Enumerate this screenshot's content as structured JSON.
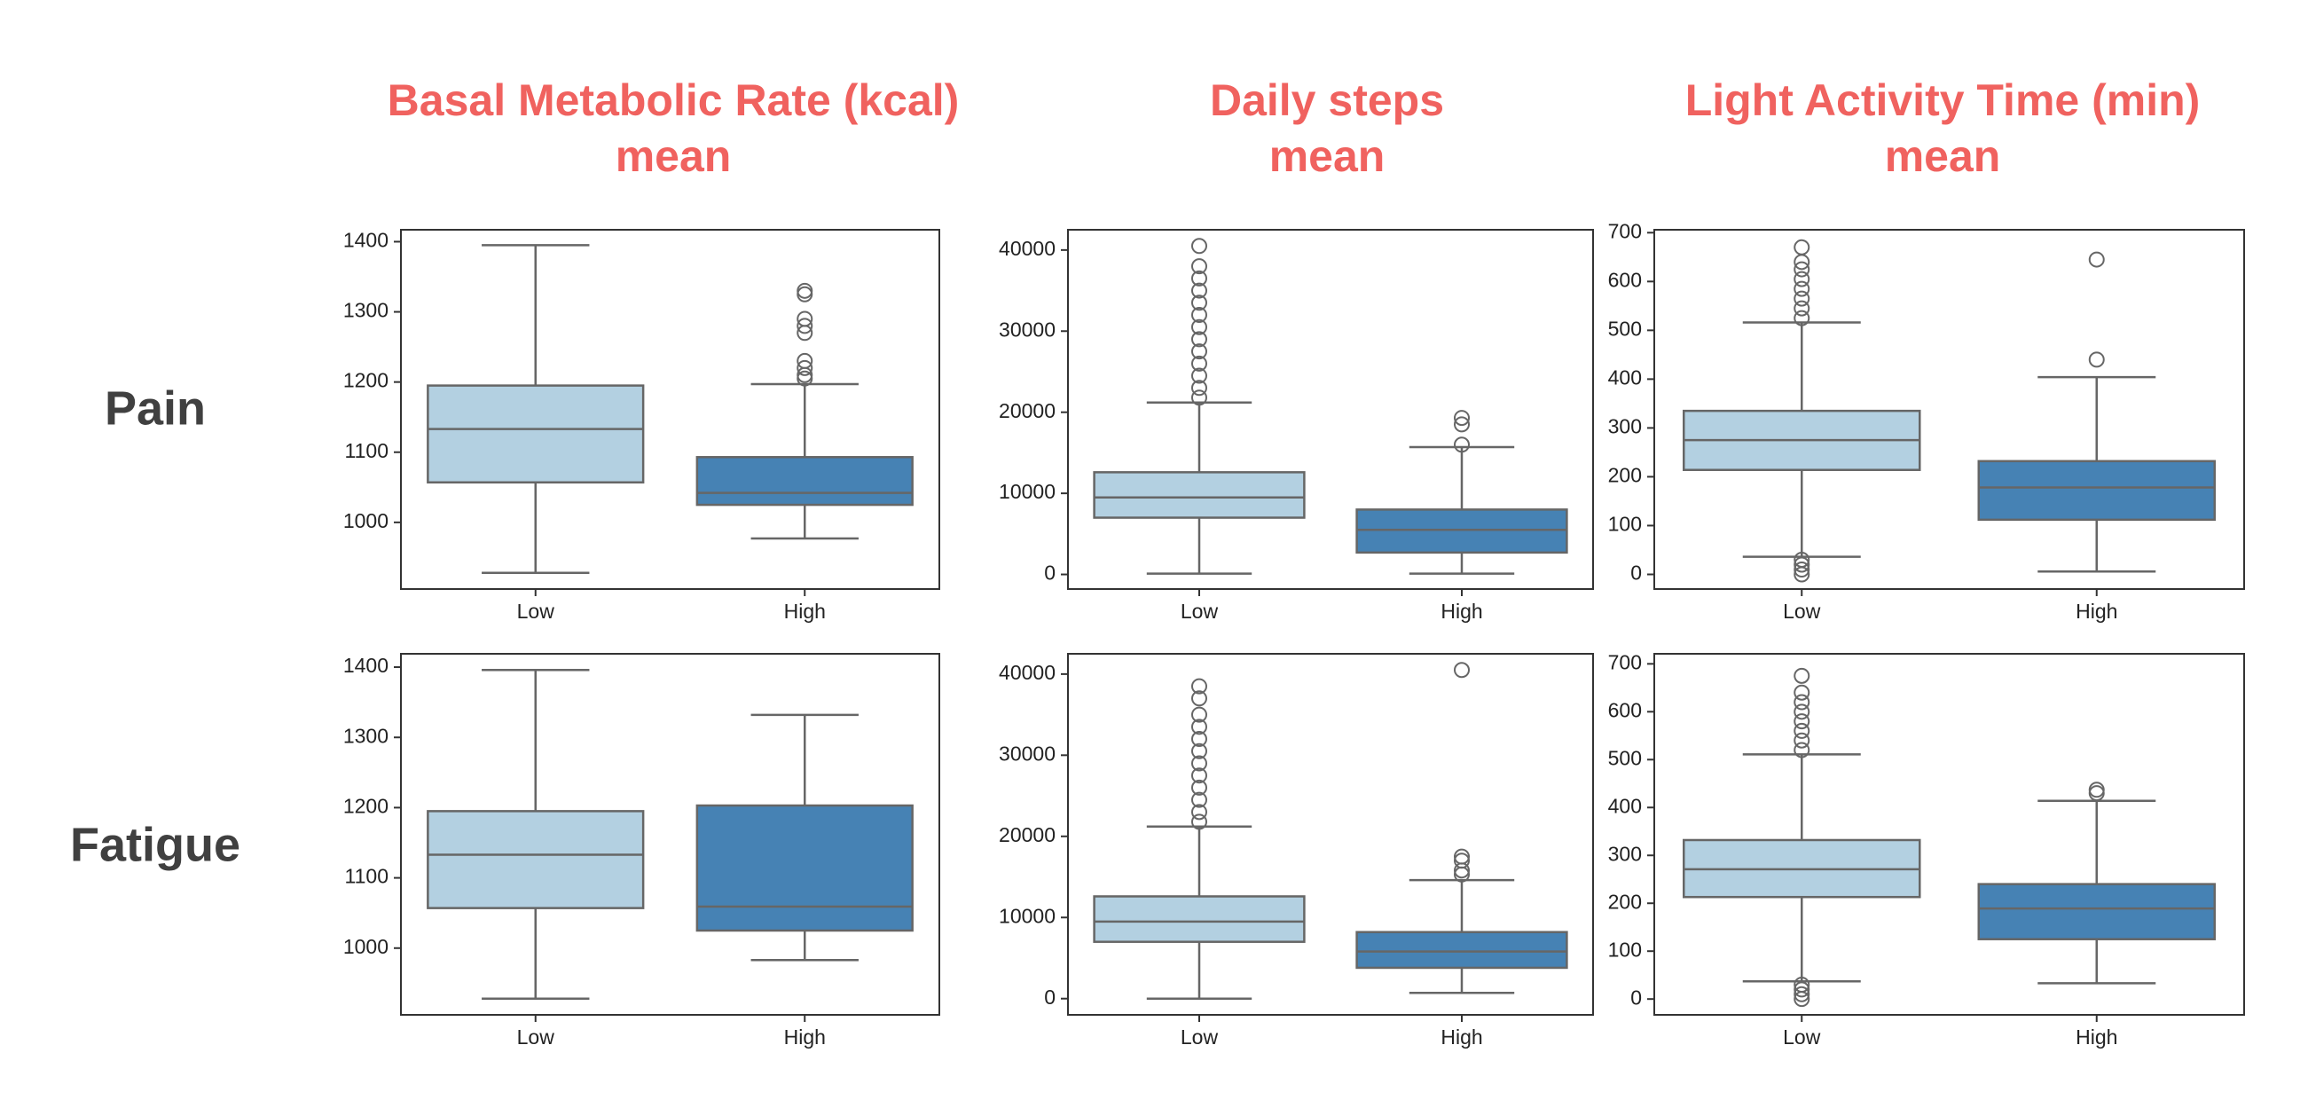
{
  "column_titles": [
    [
      "Basal Metabolic Rate (kcal)",
      "mean"
    ],
    [
      "Daily steps",
      "mean"
    ],
    [
      "Light Activity Time (min)",
      "mean"
    ]
  ],
  "row_labels": [
    "Pain",
    "Fatigue"
  ],
  "chart_data": [
    {
      "type": "box",
      "categories": [
        "Low",
        "High"
      ],
      "colors": [
        "#b3d0e1",
        "#4682b4"
      ],
      "ylim": [
        905,
        1417
      ],
      "yticks": [
        1000,
        1100,
        1200,
        1300,
        1400
      ],
      "boxes": [
        {
          "whislo": 928,
          "q1": 1057,
          "med": 1133,
          "q3": 1195,
          "whishi": 1395,
          "fliers": []
        },
        {
          "whislo": 977,
          "q1": 1025,
          "med": 1042,
          "q3": 1093,
          "whishi": 1197,
          "fliers": [
            1205,
            1210,
            1220,
            1230,
            1270,
            1280,
            1290,
            1325,
            1330
          ]
        }
      ]
    },
    {
      "type": "box",
      "categories": [
        "Low",
        "High"
      ],
      "colors": [
        "#b3d0e1",
        "#4682b4"
      ],
      "ylim": [
        -1800,
        42500
      ],
      "yticks": [
        0,
        10000,
        20000,
        30000,
        40000
      ],
      "boxes": [
        {
          "whislo": 100,
          "q1": 7000,
          "med": 9500,
          "q3": 12600,
          "whishi": 21200,
          "fliers": [
            21800,
            23000,
            24500,
            26000,
            27500,
            29000,
            30500,
            32000,
            33500,
            35000,
            36500,
            38000,
            40500
          ]
        },
        {
          "whislo": 100,
          "q1": 2700,
          "med": 5500,
          "q3": 8000,
          "whishi": 15700,
          "fliers": [
            16000,
            18500,
            19300
          ]
        }
      ]
    },
    {
      "type": "box",
      "categories": [
        "Low",
        "High"
      ],
      "colors": [
        "#b3d0e1",
        "#4682b4"
      ],
      "ylim": [
        -30,
        706
      ],
      "yticks": [
        0,
        100,
        200,
        300,
        400,
        500,
        600,
        700
      ],
      "boxes": [
        {
          "whislo": 36,
          "q1": 214,
          "med": 275,
          "q3": 335,
          "whishi": 516,
          "fliers": [
            0,
            10,
            20,
            30,
            525,
            545,
            565,
            585,
            605,
            625,
            640,
            670
          ]
        },
        {
          "whislo": 6,
          "q1": 112,
          "med": 178,
          "q3": 232,
          "whishi": 404,
          "fliers": [
            440,
            645
          ]
        }
      ]
    },
    {
      "type": "box",
      "categories": [
        "Low",
        "High"
      ],
      "colors": [
        "#b3d0e1",
        "#4682b4"
      ],
      "ylim": [
        905,
        1419
      ],
      "yticks": [
        1000,
        1100,
        1200,
        1300,
        1400
      ],
      "boxes": [
        {
          "whislo": 928,
          "q1": 1057,
          "med": 1133,
          "q3": 1195,
          "whishi": 1396,
          "fliers": []
        },
        {
          "whislo": 983,
          "q1": 1025,
          "med": 1059,
          "q3": 1203,
          "whishi": 1332,
          "fliers": []
        }
      ]
    },
    {
      "type": "box",
      "categories": [
        "Low",
        "High"
      ],
      "colors": [
        "#b3d0e1",
        "#4682b4"
      ],
      "ylim": [
        -2000,
        42500
      ],
      "yticks": [
        0,
        10000,
        20000,
        30000,
        40000
      ],
      "boxes": [
        {
          "whislo": 0,
          "q1": 7000,
          "med": 9500,
          "q3": 12600,
          "whishi": 21200,
          "fliers": [
            21800,
            23000,
            24500,
            26000,
            27500,
            29000,
            30500,
            32000,
            33500,
            35000,
            37000,
            38500
          ]
        },
        {
          "whislo": 700,
          "q1": 3800,
          "med": 5800,
          "q3": 8200,
          "whishi": 14600,
          "fliers": [
            15300,
            15800,
            17000,
            17500,
            40500
          ]
        }
      ]
    },
    {
      "type": "box",
      "categories": [
        "Low",
        "High"
      ],
      "colors": [
        "#b3d0e1",
        "#4682b4"
      ],
      "ylim": [
        -33,
        721
      ],
      "yticks": [
        0,
        100,
        200,
        300,
        400,
        500,
        600,
        700
      ],
      "boxes": [
        {
          "whislo": 37,
          "q1": 213,
          "med": 271,
          "q3": 332,
          "whishi": 511,
          "fliers": [
            0,
            10,
            20,
            30,
            520,
            540,
            560,
            580,
            600,
            620,
            640,
            675
          ]
        },
        {
          "whislo": 33,
          "q1": 125,
          "med": 189,
          "q3": 240,
          "whishi": 414,
          "fliers": [
            430,
            437
          ]
        }
      ]
    }
  ]
}
